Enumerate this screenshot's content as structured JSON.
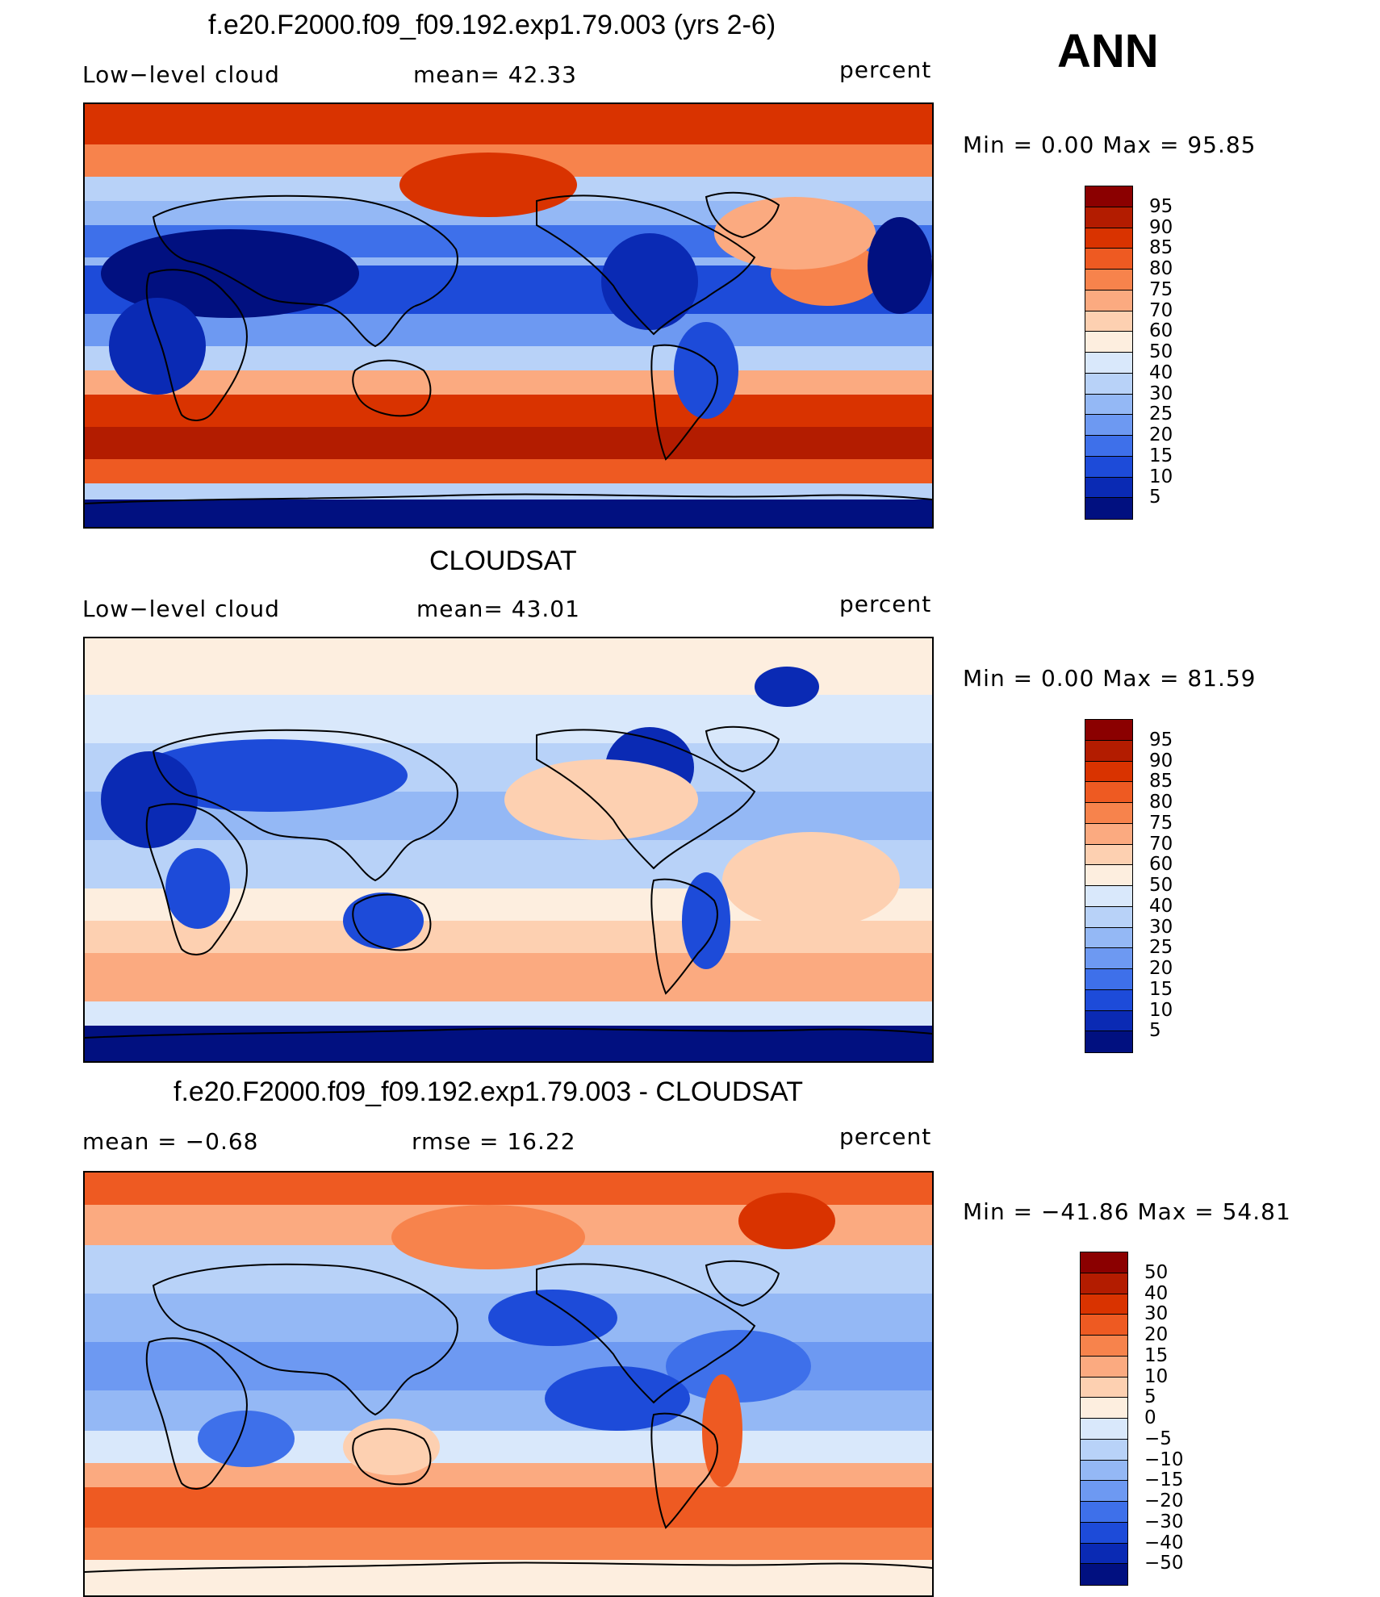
{
  "season": "ANN",
  "panels": [
    {
      "title": "f.e20.F2000.f09_f09.192.exp1.79.003 (yrs 2-6)",
      "left_label": "Low−level cloud",
      "center_label": "mean=   42.33",
      "units": "percent",
      "minmax": "Min  =     0.00  Max  =    95.85",
      "colorbar": {
        "labels": [
          "95",
          "90",
          "85",
          "80",
          "75",
          "70",
          "60",
          "50",
          "40",
          "30",
          "25",
          "20",
          "15",
          "10",
          "5"
        ],
        "colors": [
          "#8b0000",
          "#b31c00",
          "#d93300",
          "#ee5a22",
          "#f7834c",
          "#fbaa80",
          "#fdd0b1",
          "#fdeedf",
          "#d9e8fb",
          "#b8d2f8",
          "#94b8f5",
          "#6d99f2",
          "#3e70ea",
          "#1d4bd9",
          "#0a2ab4",
          "#011080"
        ]
      },
      "regions": [
        "land-desert-blue",
        "midlat-storm-red",
        "stratocumulus-decks"
      ]
    },
    {
      "title": "CLOUDSAT",
      "left_label": "Low−level cloud",
      "center_label": "mean=   43.01",
      "units": "percent",
      "minmax": "Min  =     0.00  Max  =    81.59",
      "colorbar": {
        "labels": [
          "95",
          "90",
          "85",
          "80",
          "75",
          "70",
          "60",
          "50",
          "40",
          "30",
          "25",
          "20",
          "15",
          "10",
          "5"
        ],
        "colors": [
          "#8b0000",
          "#b31c00",
          "#d93300",
          "#ee5a22",
          "#f7834c",
          "#fbaa80",
          "#fdd0b1",
          "#fdeedf",
          "#d9e8fb",
          "#b8d2f8",
          "#94b8f5",
          "#6d99f2",
          "#3e70ea",
          "#1d4bd9",
          "#0a2ab4",
          "#011080"
        ]
      }
    },
    {
      "title": "f.e20.F2000.f09_f09.192.exp1.79.003 - CLOUDSAT",
      "left_label": "mean  =    −0.68",
      "center_label": "rmse  =    16.22",
      "units": "percent",
      "minmax": "Min  = −41.86  Max  =    54.81",
      "colorbar": {
        "labels": [
          "50",
          "40",
          "30",
          "20",
          "15",
          "10",
          "5",
          "0",
          "−5",
          "−10",
          "−15",
          "−20",
          "−30",
          "−40",
          "−50"
        ],
        "colors": [
          "#8b0000",
          "#b31c00",
          "#d93300",
          "#ee5a22",
          "#f7834c",
          "#fbaa80",
          "#fdd0b1",
          "#fdeedf",
          "#d9e8fb",
          "#b8d2f8",
          "#94b8f5",
          "#6d99f2",
          "#3e70ea",
          "#1d4bd9",
          "#0a2ab4",
          "#011080"
        ]
      }
    }
  ]
}
